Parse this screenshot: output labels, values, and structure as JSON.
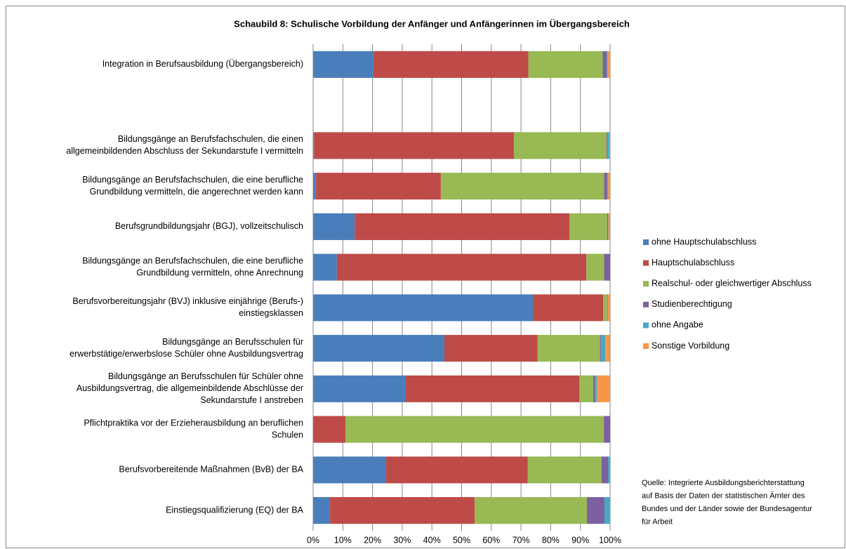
{
  "chart_data": {
    "type": "stacked_barh",
    "title": "Schaubild 8: Schulische Vorbildung der Anfänger und Anfängerinnen im Übergangsbereich",
    "categories": [
      [
        "Integration in Berufsausbildung (Übergangsbereich)"
      ],
      null,
      [
        "Bildungsgänge an Berufsfachschulen, die einen",
        "allgemeinbildenden Abschluss der Sekundarstufe I vermitteln"
      ],
      [
        "Bildungsgänge an Berufsfachschulen, die eine berufliche",
        "Grundbildung vermitteln, die angerechnet werden kann"
      ],
      [
        "Berufsgrundbildungsjahr (BGJ), vollzeitschulisch"
      ],
      [
        "Bildungsgänge an Berufsfachschulen, die eine berufliche",
        "Grundbildung vermitteln, ohne Anrechnung"
      ],
      [
        "Berufsvorbereitungsjahr (BVJ) inklusive einjährige (Berufs-)",
        "einstiegsklassen"
      ],
      [
        "Bildungsgänge an Berufsschulen für",
        "erwerbstätige/erwerbslose Schüler ohne Ausbildungsvertrag"
      ],
      [
        "Bildungsgänge an Berufsschulen für Schüler ohne",
        "Ausbildungsvertrag, die allgemeinbildende Abschlüsse der",
        "Sekundarstufe I anstreben"
      ],
      [
        "Pflichtpraktika vor der Erzieherausbildung an beruflichen",
        "Schulen"
      ],
      [
        "Berufsvorbereitende Maßnahmen (BvB) der BA"
      ],
      [
        "Einstiegsqualifizierung (EQ) der BA"
      ]
    ],
    "series": [
      {
        "name": "ohne Hauptschulabschluss",
        "color": "#4a7ebb",
        "values": [
          20.3,
          null,
          0.3,
          1,
          14,
          8,
          74,
          44.2,
          31.2,
          0,
          24.6,
          5.7
        ]
      },
      {
        "name": "Hauptschulabschluss",
        "color": "#be4b48",
        "values": [
          52.2,
          null,
          67.3,
          42,
          72.3,
          84,
          23.7,
          31.4,
          58.4,
          10.9,
          47.7,
          48.7
        ]
      },
      {
        "name": "Realschul- oder gleichwertiger Abschluss",
        "color": "#98b954",
        "values": [
          25,
          null,
          31.2,
          55,
          12.7,
          6,
          1.3,
          21,
          4.7,
          87,
          24.8,
          37.8
        ]
      },
      {
        "name": "Studienberechtigung",
        "color": "#7d60a0",
        "values": [
          1.4,
          null,
          0.3,
          1,
          0.3,
          2,
          0.2,
          0.3,
          0.5,
          2.1,
          2.2,
          5.9
        ]
      },
      {
        "name": "ohne Angabe",
        "color": "#46aac5",
        "values": [
          0.3,
          null,
          0.7,
          0.3,
          0.1,
          0,
          0,
          1.5,
          0.7,
          0,
          0.7,
          1.9
        ]
      },
      {
        "name": "Sonstige Vorbildung",
        "color": "#f79646",
        "values": [
          0.8,
          null,
          0.2,
          0.7,
          0.6,
          0,
          0.8,
          1.5,
          4.5,
          0,
          0,
          0
        ]
      }
    ],
    "xlim": [
      0,
      100
    ],
    "xticks": [
      {
        "value": 0,
        "label": "0%"
      },
      {
        "value": 10,
        "label": "10%"
      },
      {
        "value": 20,
        "label": "20%"
      },
      {
        "value": 30,
        "label": "30%"
      },
      {
        "value": 40,
        "label": "40%"
      },
      {
        "value": 50,
        "label": "50%"
      },
      {
        "value": 60,
        "label": "60%"
      },
      {
        "value": 70,
        "label": "70%"
      },
      {
        "value": 80,
        "label": "80%"
      },
      {
        "value": 90,
        "label": "90%"
      },
      {
        "value": 100,
        "label": "100%"
      }
    ],
    "grid": true,
    "legend": "right",
    "source": [
      "Quelle: Integrierte Ausbildungsberichterstattung",
      "auf Basis der Daten der statistischen Ämter des",
      "Bundes und der Länder sowie der Bundesagentur",
      "für Arbeit"
    ]
  }
}
